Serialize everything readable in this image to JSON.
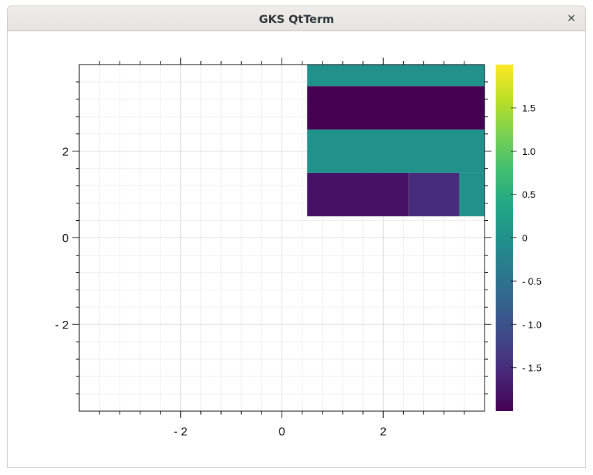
{
  "window": {
    "title": "GKS QtTerm",
    "close_glyph": "×",
    "close_icon": "close-icon"
  },
  "chart_data": {
    "type": "heatmap",
    "xlim": [
      -4,
      4
    ],
    "ylim": [
      -4,
      4
    ],
    "x_ticks": [
      -2,
      0,
      2
    ],
    "x_tick_labels": [
      "- 2",
      "0",
      "2"
    ],
    "y_ticks": [
      -2,
      0,
      2
    ],
    "y_tick_labels": [
      "- 2",
      "0",
      "2"
    ],
    "x_minor_step": 0.4,
    "y_minor_step": 0.4,
    "grid": true,
    "colormap": "viridis",
    "color_range": [
      -2,
      2
    ],
    "colorbar_ticks": [
      1.5,
      1.0,
      0.5,
      0,
      -0.5,
      -1.0,
      -1.5
    ],
    "colorbar_tick_labels": [
      "1.5",
      "1.0",
      "0.5",
      "0",
      "- 0.5",
      "- 1.0",
      "- 1.5"
    ],
    "cells": [
      {
        "x": [
          0.5,
          4.0
        ],
        "y": [
          3.5,
          4.0
        ],
        "value": 0
      },
      {
        "x": [
          0.5,
          4.0
        ],
        "y": [
          2.5,
          3.5
        ],
        "value": -2
      },
      {
        "x": [
          0.5,
          4.0
        ],
        "y": [
          1.5,
          2.5
        ],
        "value": 0
      },
      {
        "x": [
          0.5,
          2.5
        ],
        "y": [
          0.5,
          1.5
        ],
        "value": -1.8
      },
      {
        "x": [
          2.5,
          3.5
        ],
        "y": [
          0.5,
          1.5
        ],
        "value": -1.5
      },
      {
        "x": [
          3.5,
          4.0
        ],
        "y": [
          0.5,
          1.5
        ],
        "value": 0
      }
    ],
    "colors": {
      "axis": "#000000",
      "grid_major": "#d9d9d9",
      "grid_minor": "#eeeeee"
    }
  }
}
